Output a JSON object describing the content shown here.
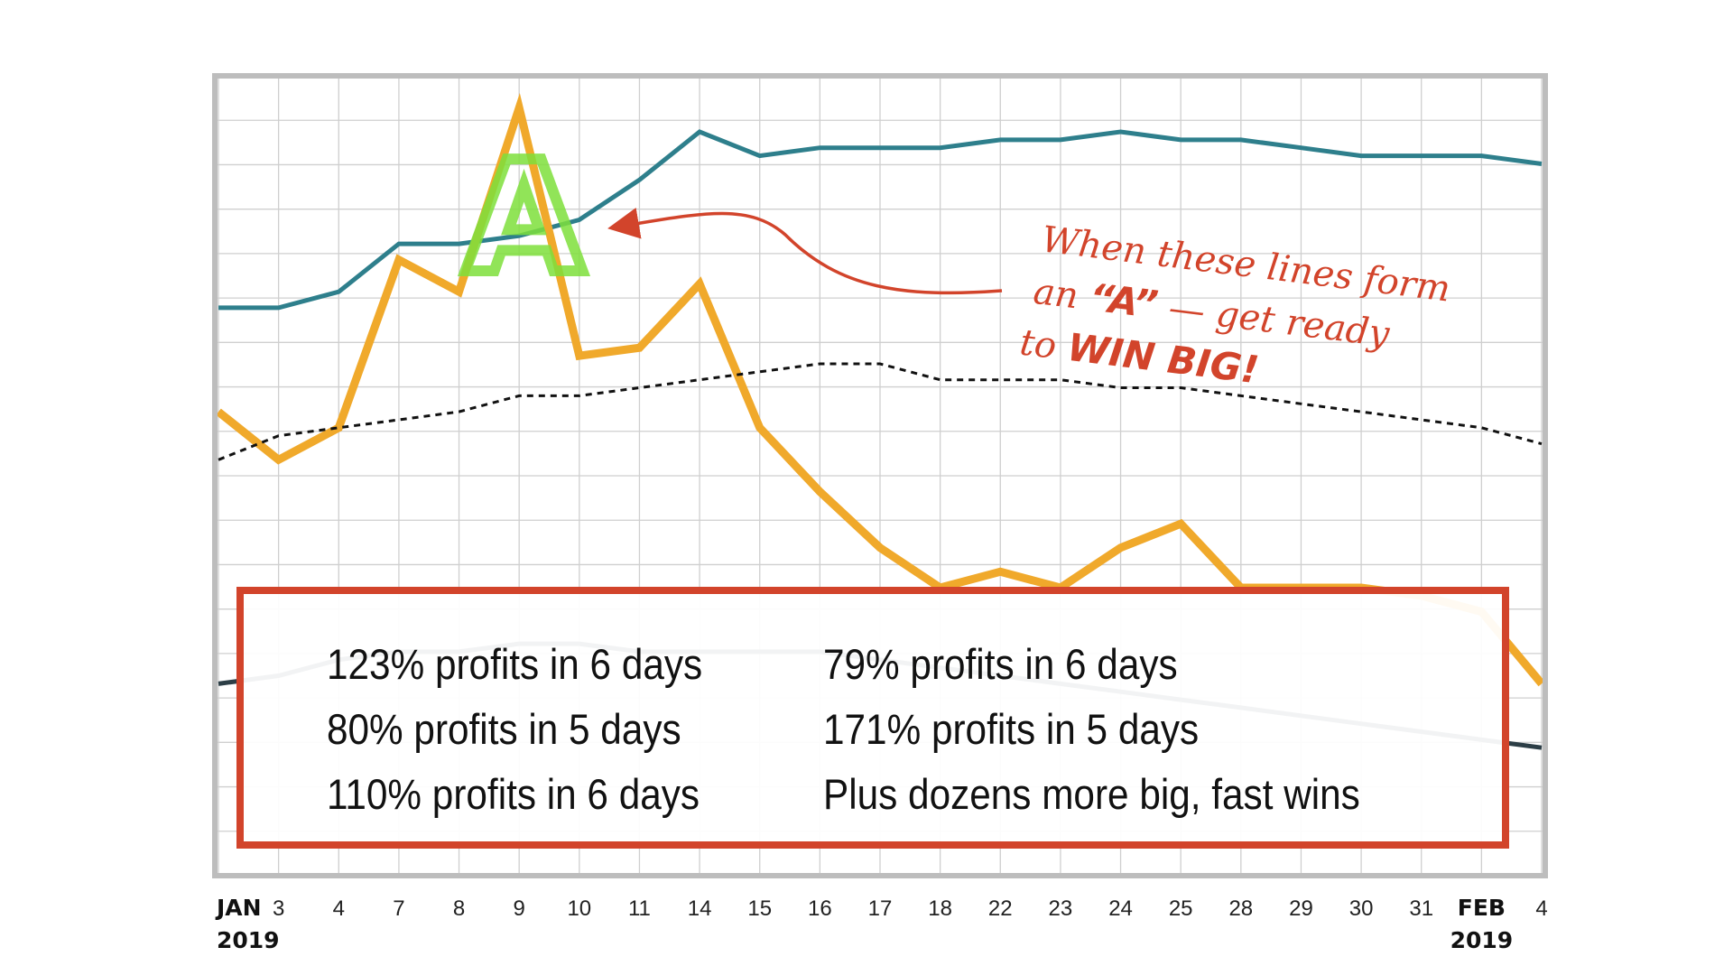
{
  "chart_data": {
    "type": "line",
    "categories": [
      "JAN 2019",
      "3",
      "4",
      "7",
      "8",
      "9",
      "10",
      "11",
      "14",
      "15",
      "16",
      "17",
      "18",
      "22",
      "23",
      "24",
      "25",
      "28",
      "29",
      "30",
      "31",
      "FEB 2019",
      "4"
    ],
    "x_labels": [
      {
        "line1": "JAN",
        "line2": "2019",
        "bold": true
      },
      {
        "line1": "3"
      },
      {
        "line1": "4"
      },
      {
        "line1": "7"
      },
      {
        "line1": "8"
      },
      {
        "line1": "9"
      },
      {
        "line1": "10"
      },
      {
        "line1": "11"
      },
      {
        "line1": "14"
      },
      {
        "line1": "15"
      },
      {
        "line1": "16"
      },
      {
        "line1": "17"
      },
      {
        "line1": "18"
      },
      {
        "line1": "22"
      },
      {
        "line1": "23"
      },
      {
        "line1": "24"
      },
      {
        "line1": "25"
      },
      {
        "line1": "28"
      },
      {
        "line1": "29"
      },
      {
        "line1": "30"
      },
      {
        "line1": "31"
      },
      {
        "line1": "FEB",
        "line2": "2019",
        "bold": true
      },
      {
        "line1": "4"
      }
    ],
    "ylim": [
      0,
      100
    ],
    "grid": true,
    "series": [
      {
        "color": "#2e7f8c",
        "style": "solid",
        "values": [
          71,
          71,
          73,
          79,
          79,
          80,
          82,
          87,
          93,
          90,
          91,
          91,
          91,
          92,
          92,
          93,
          92,
          92,
          91,
          90,
          90,
          90,
          89
        ]
      },
      {
        "color": "#f0a92b",
        "style": "solid",
        "values": [
          58,
          52,
          56,
          77,
          73,
          96,
          65,
          66,
          74,
          56,
          48,
          41,
          36,
          38,
          36,
          41,
          44,
          36,
          36,
          36,
          35,
          33,
          24
        ]
      },
      {
        "color": "#111111",
        "style": "dashed",
        "values": [
          52,
          55,
          56,
          57,
          58,
          60,
          60,
          61,
          62,
          63,
          64,
          64,
          62,
          62,
          62,
          61,
          61,
          60,
          59,
          58,
          57,
          56,
          54
        ]
      },
      {
        "color": "#2c3e46",
        "style": "solid",
        "values": [
          24,
          25,
          27,
          28,
          28,
          29,
          29,
          28,
          28,
          28,
          28,
          27,
          26,
          25,
          24,
          23,
          22,
          21,
          20,
          19,
          18,
          17,
          16
        ]
      }
    ],
    "annotation": {
      "line1": "When these lines form",
      "line2_prefix": "an ",
      "line2_strong": "“A”",
      "line2_suffix": " — get ready",
      "line3_prefix": "to ",
      "line3_strong": "WIN BIG!"
    },
    "highlight_letter": "A",
    "colors": {
      "annotation": "#d2442b",
      "highlight": "#7ee03c",
      "frame": "#bdbdbd",
      "grid": "#cfcfcf"
    }
  },
  "results": {
    "left": [
      "123% profits in 6 days",
      "80% profits in 5 days",
      "110% profits in 6 days"
    ],
    "right": [
      "79% profits in 6 days",
      "171% profits in 5 days",
      "Plus dozens more big, fast wins"
    ]
  }
}
